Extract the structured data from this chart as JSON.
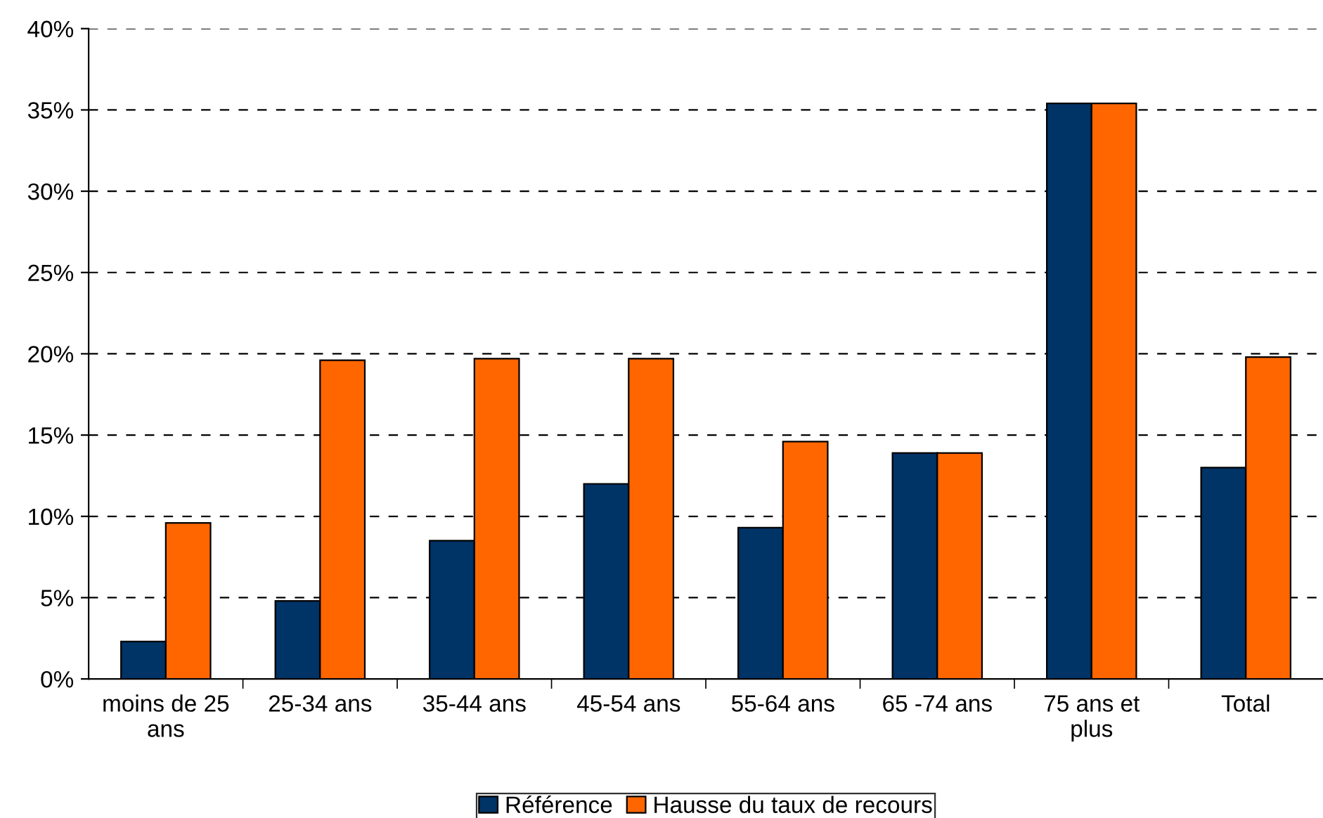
{
  "chart_data": {
    "type": "bar",
    "categories": [
      "moins de 25\nans",
      "25-34 ans",
      "35-44 ans",
      "45-54 ans",
      "55-64 ans",
      "65 -74 ans",
      "75 ans et\nplus",
      "Total"
    ],
    "series": [
      {
        "name": "Référence",
        "color": "#003366",
        "values": [
          2.3,
          4.8,
          8.5,
          12.0,
          9.3,
          13.9,
          35.4,
          13.0
        ]
      },
      {
        "name": "Hausse du taux de recours",
        "color": "#ff6600",
        "values": [
          9.6,
          19.6,
          19.7,
          19.7,
          14.6,
          13.9,
          35.4,
          19.8
        ]
      }
    ],
    "ylim": [
      0,
      40
    ],
    "yticks": [
      {
        "value": 0,
        "label": "0%"
      },
      {
        "value": 5,
        "label": "5%"
      },
      {
        "value": 10,
        "label": "10%"
      },
      {
        "value": 15,
        "label": "15%"
      },
      {
        "value": 20,
        "label": "20%"
      },
      {
        "value": 25,
        "label": "25%"
      },
      {
        "value": 30,
        "label": "30%"
      },
      {
        "value": 35,
        "label": "35%"
      },
      {
        "value": 40,
        "label": "40%"
      }
    ],
    "grid": "y",
    "legend": "bottom"
  }
}
